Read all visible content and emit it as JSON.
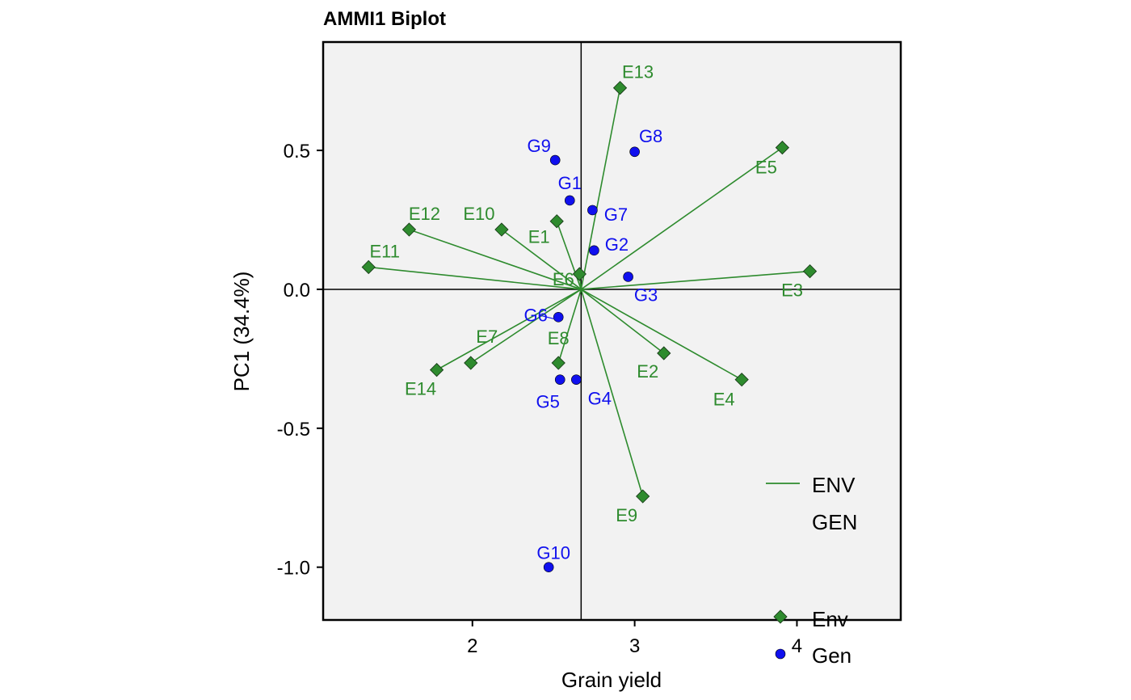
{
  "chart_data": {
    "type": "scatter",
    "title": "AMMI1 Biplot",
    "xlabel": "Grain yield",
    "ylabel": "PC1 (34.4%)",
    "xlim": [
      1.08,
      4.64
    ],
    "ylim": [
      -1.19,
      0.89
    ],
    "xticks": [
      2,
      3,
      4
    ],
    "xtick_labels": [
      "2",
      "3",
      "4"
    ],
    "yticks": [
      0.5,
      0.0,
      -0.5,
      -1.0
    ],
    "ytick_labels": [
      "0.5",
      "0.0",
      "-0.5",
      "-1.0"
    ],
    "origin": [
      2.67,
      0.0
    ],
    "colors": {
      "env": "#2e8b2e",
      "gen": "#1010ee",
      "panel": "#f2f2f2"
    },
    "series": [
      {
        "name": "Env",
        "marker": "diamond",
        "points": [
          {
            "label": "E1",
            "x": 2.52,
            "y": 0.245
          },
          {
            "label": "E2",
            "x": 3.18,
            "y": -0.23
          },
          {
            "label": "E3",
            "x": 4.08,
            "y": 0.065
          },
          {
            "label": "E4",
            "x": 3.66,
            "y": -0.325
          },
          {
            "label": "E5",
            "x": 3.91,
            "y": 0.51
          },
          {
            "label": "E6",
            "x": 2.66,
            "y": 0.055
          },
          {
            "label": "E7",
            "x": 1.99,
            "y": -0.265
          },
          {
            "label": "E8",
            "x": 2.53,
            "y": -0.265
          },
          {
            "label": "E9",
            "x": 3.05,
            "y": -0.745
          },
          {
            "label": "E10",
            "x": 2.18,
            "y": 0.215
          },
          {
            "label": "E11",
            "x": 1.36,
            "y": 0.08
          },
          {
            "label": "E12",
            "x": 1.61,
            "y": 0.215
          },
          {
            "label": "E13",
            "x": 2.91,
            "y": 0.725
          },
          {
            "label": "E14",
            "x": 1.78,
            "y": -0.29
          }
        ]
      },
      {
        "name": "Gen",
        "marker": "circle",
        "points": [
          {
            "label": "G1",
            "x": 2.6,
            "y": 0.32
          },
          {
            "label": "G2",
            "x": 2.75,
            "y": 0.14
          },
          {
            "label": "G3",
            "x": 2.96,
            "y": 0.045
          },
          {
            "label": "G4",
            "x": 2.64,
            "y": -0.325
          },
          {
            "label": "G5",
            "x": 2.54,
            "y": -0.325
          },
          {
            "label": "G6",
            "x": 2.53,
            "y": -0.1
          },
          {
            "label": "G7",
            "x": 2.74,
            "y": 0.285
          },
          {
            "label": "G8",
            "x": 3.0,
            "y": 0.495
          },
          {
            "label": "G9",
            "x": 2.51,
            "y": 0.465
          },
          {
            "label": "G10",
            "x": 2.47,
            "y": -1.0
          }
        ]
      }
    ],
    "legend": {
      "placement": "bottom-right",
      "line_items": [
        {
          "label": "ENV",
          "color": "#2e8b2e"
        },
        {
          "label": "GEN",
          "color": ""
        }
      ],
      "marker_items": [
        {
          "label": "Env",
          "marker": "diamond",
          "color": "#2e8b2e"
        },
        {
          "label": "Gen",
          "marker": "circle",
          "color": "#1010ee"
        }
      ]
    }
  }
}
